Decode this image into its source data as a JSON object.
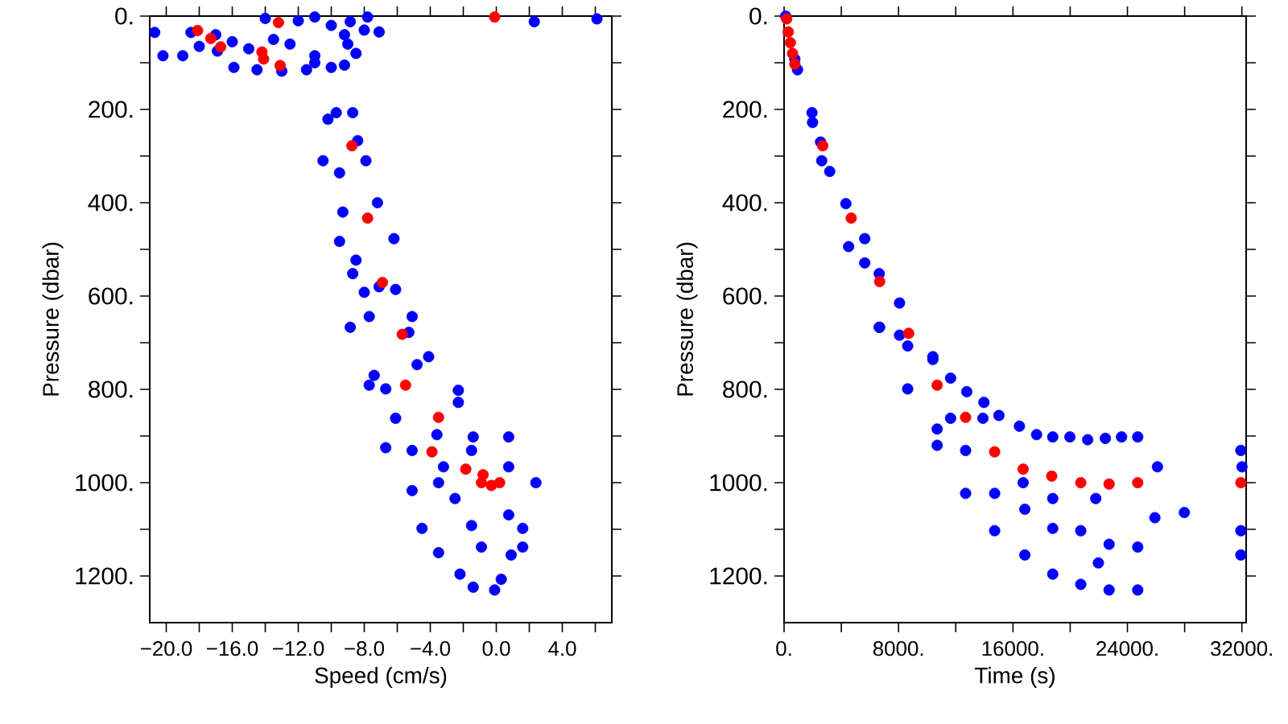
{
  "chart_data": [
    {
      "type": "scatter",
      "xlabel": "Speed (cm/s)",
      "ylabel": "Pressure (dbar)",
      "xlim": [
        -21,
        7
      ],
      "ylim": [
        1300,
        0
      ],
      "xticks": [
        {
          "value": -20,
          "label": "−20.0"
        },
        {
          "value": -18,
          "label": null
        },
        {
          "value": -16,
          "label": "−16.0"
        },
        {
          "value": -14,
          "label": null
        },
        {
          "value": -12,
          "label": "−12.0"
        },
        {
          "value": -10,
          "label": null
        },
        {
          "value": -8,
          "label": "−8.0"
        },
        {
          "value": -6,
          "label": null
        },
        {
          "value": -4,
          "label": "−4.0"
        },
        {
          "value": -2,
          "label": null
        },
        {
          "value": 0,
          "label": "0.0"
        },
        {
          "value": 2,
          "label": null
        },
        {
          "value": 4,
          "label": "4.0"
        },
        {
          "value": 6,
          "label": null
        }
      ],
      "yticks": [
        {
          "value": 0,
          "label": "0."
        },
        {
          "value": 100,
          "label": null
        },
        {
          "value": 200,
          "label": "200."
        },
        {
          "value": 300,
          "label": null
        },
        {
          "value": 400,
          "label": "400."
        },
        {
          "value": 500,
          "label": null
        },
        {
          "value": 600,
          "label": "600."
        },
        {
          "value": 700,
          "label": null
        },
        {
          "value": 800,
          "label": "800."
        },
        {
          "value": 900,
          "label": null
        },
        {
          "value": 1000,
          "label": "1000."
        },
        {
          "value": 1100,
          "label": null
        },
        {
          "value": 1200,
          "label": "1200."
        }
      ],
      "series": [
        {
          "color": "#0000ff",
          "x": [
            -20.7,
            -20.2,
            -18.5,
            -17,
            -16.9,
            -15.9,
            -14.5,
            -13,
            -11.5,
            -10,
            -9.2,
            -8.5,
            -9,
            -9.2,
            -8,
            -12,
            -14,
            -11,
            -10,
            -12.5,
            -15,
            -13.5,
            -11,
            -16,
            -18,
            -19,
            -7.8,
            -11,
            -8.85,
            -7.1,
            2.3,
            6.1,
            -9.7,
            -10.2,
            -8.7,
            -10.5,
            -8.4,
            -7.9,
            -9.5,
            -9.3,
            -7.2,
            -9.5,
            -8.5,
            -6.2,
            -8.7,
            -7.1,
            -6.1,
            -8.0,
            -8.85,
            -7.7,
            -5.1,
            -5.3,
            -7.4,
            -7.7,
            -6.7,
            -4.8,
            -4.1,
            -2.3,
            -6.1,
            -6.7,
            -5.1,
            -5.1,
            -4.5,
            -3.5,
            -2.2,
            -1.4,
            -0.1,
            0.3,
            0.75,
            -1.4,
            2.4,
            1.6,
            1.6,
            0.9,
            -1.5,
            -0.9,
            -2.5,
            0.75,
            -3.2,
            -3.6,
            -2.3,
            0.75,
            -3.5,
            -1.5
          ],
          "values": [
            35,
            85,
            35,
            40,
            75,
            110,
            115,
            118,
            115,
            110,
            105,
            80,
            60,
            40,
            30,
            10,
            5,
            2,
            20,
            60,
            70,
            50,
            85,
            55,
            65,
            85,
            2,
            100,
            12,
            34,
            12,
            6,
            207,
            221,
            207,
            310,
            267,
            310,
            336,
            420,
            400,
            483,
            523,
            477,
            552,
            580,
            586,
            592,
            667,
            644,
            644,
            678,
            770,
            791,
            799,
            747,
            730,
            802,
            862,
            925,
            931,
            1017,
            1098,
            1150,
            1196,
            1224,
            1230,
            1207,
            902,
            902,
            1000,
            1098,
            1138,
            1155,
            1092,
            1138,
            1034,
            1069,
            966,
            897,
            828,
            966,
            1000,
            931
          ]
        },
        {
          "color": "#ff0000",
          "x": [
            -18.1,
            -17.3,
            -16.7,
            -14.2,
            -14.1,
            -13.1,
            -13.2,
            -0.1,
            -8.75,
            -7.8,
            -6.9,
            -5.7,
            -5.5,
            -3.5,
            -3.9,
            -1.85,
            -0.8,
            -0.9,
            -0.3,
            0.2
          ],
          "values": [
            31,
            48,
            66,
            77,
            92,
            106,
            14,
            2,
            278,
            433,
            571,
            682,
            791,
            860,
            934,
            971,
            983,
            1000,
            1006,
            1000
          ]
        }
      ]
    },
    {
      "type": "scatter",
      "xlabel": "Time (s)",
      "ylabel": "Pressure (dbar)",
      "xlim": [
        0,
        32300
      ],
      "ylim": [
        1300,
        0
      ],
      "xticks": [
        {
          "value": 0,
          "label": "0."
        },
        {
          "value": 4000,
          "label": null
        },
        {
          "value": 8000,
          "label": "8000."
        },
        {
          "value": 12000,
          "label": null
        },
        {
          "value": 16000,
          "label": "16000."
        },
        {
          "value": 20000,
          "label": null
        },
        {
          "value": 24000,
          "label": "24000."
        },
        {
          "value": 28000,
          "label": null
        },
        {
          "value": 32000,
          "label": "32000."
        }
      ],
      "yticks": [
        {
          "value": 0,
          "label": "0."
        },
        {
          "value": 100,
          "label": null
        },
        {
          "value": 200,
          "label": "200."
        },
        {
          "value": 300,
          "label": null
        },
        {
          "value": 400,
          "label": "400."
        },
        {
          "value": 500,
          "label": null
        },
        {
          "value": 600,
          "label": "600."
        },
        {
          "value": 700,
          "label": null
        },
        {
          "value": 800,
          "label": "800."
        },
        {
          "value": 900,
          "label": null
        },
        {
          "value": 1000,
          "label": "1000."
        },
        {
          "value": 1100,
          "label": null
        },
        {
          "value": 1200,
          "label": "1200."
        }
      ],
      "series": [
        {
          "color": "#0000ff",
          "x": [
            110,
            750,
            940,
            1950,
            1990,
            2550,
            2630,
            3190,
            4320,
            4510,
            5640,
            5640,
            6650,
            6650,
            8070,
            8070,
            10400,
            6680,
            8640,
            8640,
            10400,
            10700,
            11640,
            11640,
            12770,
            12690,
            13970,
            13900,
            14720,
            14720,
            15020,
            16450,
            16830,
            16830,
            17650,
            18780,
            18780,
            18780,
            19980,
            20740,
            20740,
            21220,
            21970,
            22460,
            22720,
            22720,
            23590,
            24720,
            24720,
            24720,
            25920,
            26100,
            27980,
            31930,
            31930,
            31930,
            32010,
            21790,
            18780,
            16710,
            12690,
            10700
          ],
          "values": [
            0,
            92,
            115,
            207,
            228,
            270,
            310,
            333,
            402,
            494,
            477,
            529,
            552,
            667,
            615,
            684,
            730,
            667,
            707,
            799,
            736,
            920,
            776,
            862,
            805,
            1023,
            828,
            862,
            1023,
            1103,
            856,
            879,
            1155,
            1057,
            897,
            902,
            1098,
            1196,
            902,
            1103,
            1218,
            908,
            1172,
            905,
            1230,
            1132,
            902,
            902,
            1138,
            1230,
            1075,
            966,
            1064,
            931,
            1103,
            1155,
            966,
            1034,
            1034,
            1000,
            931,
            885
          ]
        },
        {
          "color": "#ff0000",
          "x": [
            180,
            290,
            440,
            590,
            750,
            2700,
            4690,
            6680,
            8710,
            10700,
            12690,
            14720,
            16710,
            18710,
            20740,
            22720,
            24720,
            31930
          ],
          "values": [
            6,
            34,
            57,
            80,
            103,
            278,
            433,
            569,
            680,
            791,
            860,
            934,
            971,
            986,
            1000,
            1003,
            1000,
            1000
          ]
        }
      ]
    }
  ]
}
